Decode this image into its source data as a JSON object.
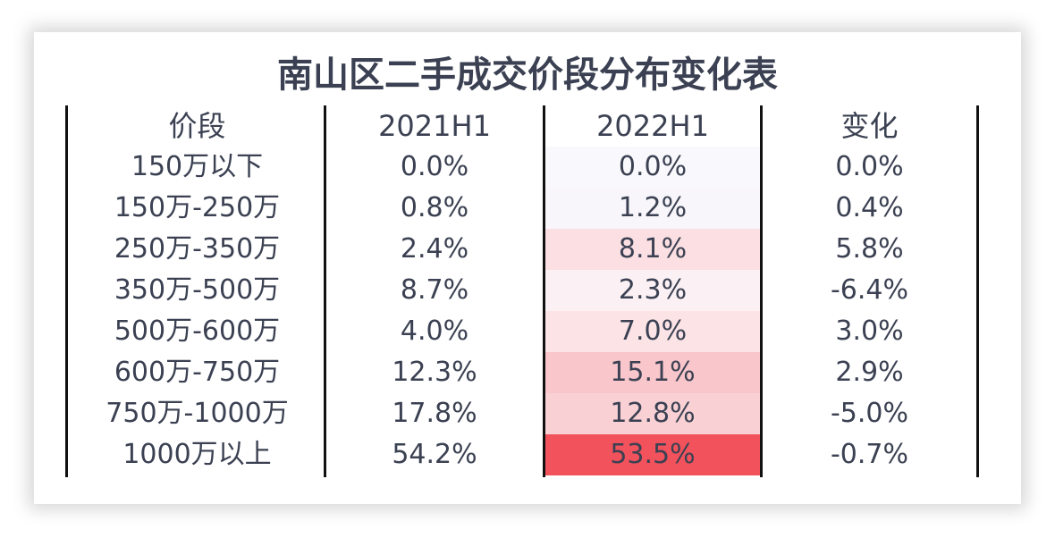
{
  "title": "南山区二手成交价段分布变化表",
  "headers": [
    "价段",
    "2021H1",
    "2022H1",
    "变化"
  ],
  "rows": [
    {
      "range": "150万以下",
      "h2021": "0.0%",
      "h2022": "0.0%",
      "change": "0.0%",
      "h2022_color": "#f9f8fc"
    },
    {
      "range": "150万-250万",
      "h2021": "0.8%",
      "h2022": "1.2%",
      "change": "0.4%",
      "h2022_color": "#f8f6fa"
    },
    {
      "range": "250万-350万",
      "h2021": "2.4%",
      "h2022": "8.1%",
      "change": "5.8%",
      "h2022_color": "#fbdfe2"
    },
    {
      "range": "350万-500万",
      "h2021": "8.7%",
      "h2022": "2.3%",
      "change": "-6.4%",
      "h2022_color": "#fbf0f4"
    },
    {
      "range": "500万-600万",
      "h2021": "4.0%",
      "h2022": "7.0%",
      "change": "3.0%",
      "h2022_color": "#fbe3e6"
    },
    {
      "range": "600万-750万",
      "h2021": "12.3%",
      "h2022": "15.1%",
      "change": "2.9%",
      "h2022_color": "#f9c6cb"
    },
    {
      "range": "750万-1000万",
      "h2021": "17.8%",
      "h2022": "12.8%",
      "change": "-5.0%",
      "h2022_color": "#f9d1d5"
    },
    {
      "range": "1000万以上",
      "h2021": "54.2%",
      "h2022": "53.5%",
      "change": "-0.7%",
      "h2022_color": "#f2525c"
    }
  ]
}
